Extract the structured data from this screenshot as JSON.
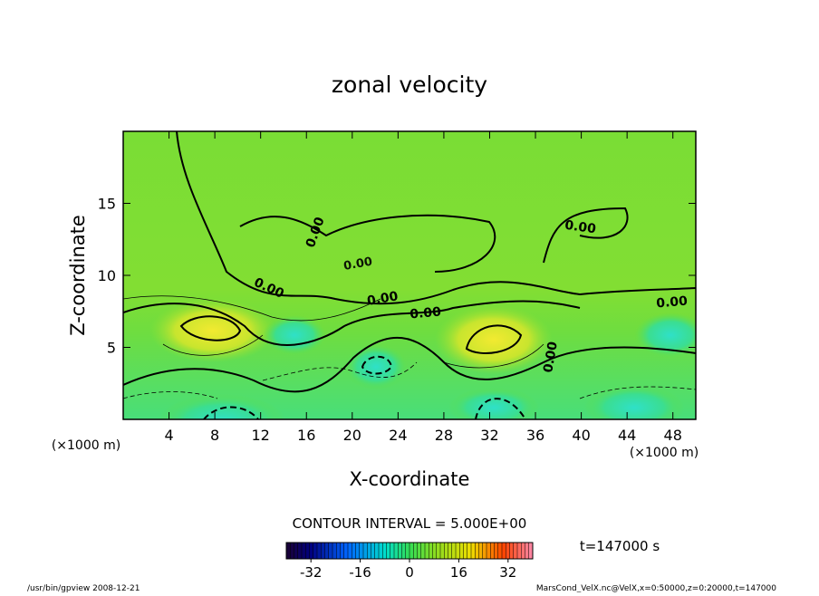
{
  "chart_data": {
    "type": "contour",
    "title": "zonal velocity",
    "x_label": "X-coordinate",
    "y_label": "Z-coordinate",
    "x_unit": "(×1000 m)",
    "xlim": [
      0,
      50
    ],
    "xticks": [
      4,
      8,
      12,
      16,
      20,
      24,
      28,
      32,
      36,
      40,
      44,
      48
    ],
    "ylim": [
      0,
      20
    ],
    "yticks": [
      5,
      10,
      15
    ],
    "contour_labels": [
      "0.00",
      "0.00",
      "0.00",
      "0.00",
      "0.00",
      "0.00",
      "0.00",
      "0.00"
    ],
    "contour_interval": "CONTOUR INTERVAL = 5.000E+00",
    "time": "t=147000 s",
    "colorbar": {
      "lim": [
        -40,
        40
      ],
      "ticks": [
        -32,
        -16,
        0,
        16,
        32
      ]
    },
    "footer_left": "/usr/bin/gpview  2008-12-21",
    "footer_right": "MarsCond_VelX.nc@VelX,x=0:50000,z=0:20000,t=147000"
  }
}
